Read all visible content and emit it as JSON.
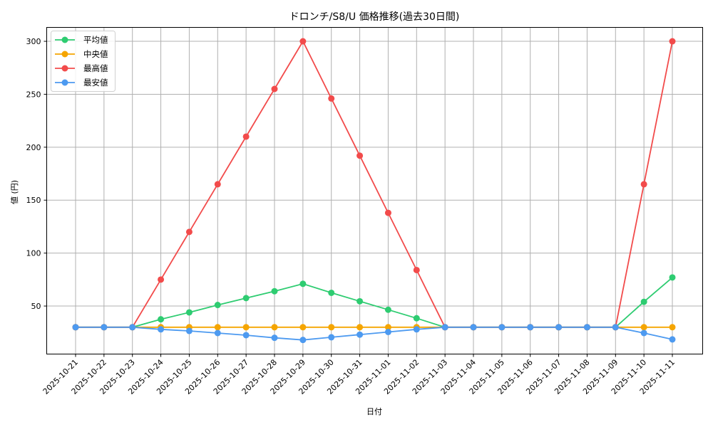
{
  "chart_data": {
    "type": "line",
    "title": "ドロンチ/S8/U 価格推移(過去30日間)",
    "xlabel": "日付",
    "ylabel": "値 (円)",
    "ylim": [
      10,
      314
    ],
    "yticks": [
      50,
      100,
      150,
      200,
      250,
      300
    ],
    "grid": true,
    "legend_position": "upper left",
    "categories": [
      "2025-10-21",
      "2025-10-22",
      "2025-10-23",
      "2025-10-24",
      "2025-10-25",
      "2025-10-26",
      "2025-10-27",
      "2025-10-28",
      "2025-10-29",
      "2025-10-30",
      "2025-10-31",
      "2025-11-01",
      "2025-11-02",
      "2025-11-03",
      "2025-11-04",
      "2025-11-05",
      "2025-11-06",
      "2025-11-07",
      "2025-11-08",
      "2025-11-09",
      "2025-11-10",
      "2025-11-11"
    ],
    "series": [
      {
        "name": "平均値",
        "color": "#2ecc71",
        "values": [
          30,
          30,
          30,
          37.5,
          44,
          51,
          57.5,
          64,
          71,
          62.5,
          54.5,
          46.5,
          38.5,
          30,
          30,
          30,
          30,
          30,
          30,
          30,
          54,
          77
        ]
      },
      {
        "name": "中央値",
        "color": "#f5a500",
        "values": [
          30,
          30,
          30,
          30,
          30,
          30,
          30,
          30,
          30,
          30,
          30,
          30,
          30,
          30,
          30,
          30,
          30,
          30,
          30,
          30,
          30,
          30
        ]
      },
      {
        "name": "最高値",
        "color": "#f24b4b",
        "values": [
          30,
          30,
          30,
          75,
          120,
          165,
          210,
          255,
          300,
          246,
          192,
          138,
          84,
          30,
          30,
          30,
          30,
          30,
          30,
          30,
          165,
          300
        ]
      },
      {
        "name": "最安値",
        "color": "#4d9af0",
        "values": [
          30,
          30,
          30,
          28,
          26.5,
          24.5,
          22.5,
          20,
          18,
          20.5,
          23,
          25.5,
          28,
          30,
          30,
          30,
          30,
          30,
          30,
          30,
          24.5,
          18.5
        ]
      }
    ]
  }
}
